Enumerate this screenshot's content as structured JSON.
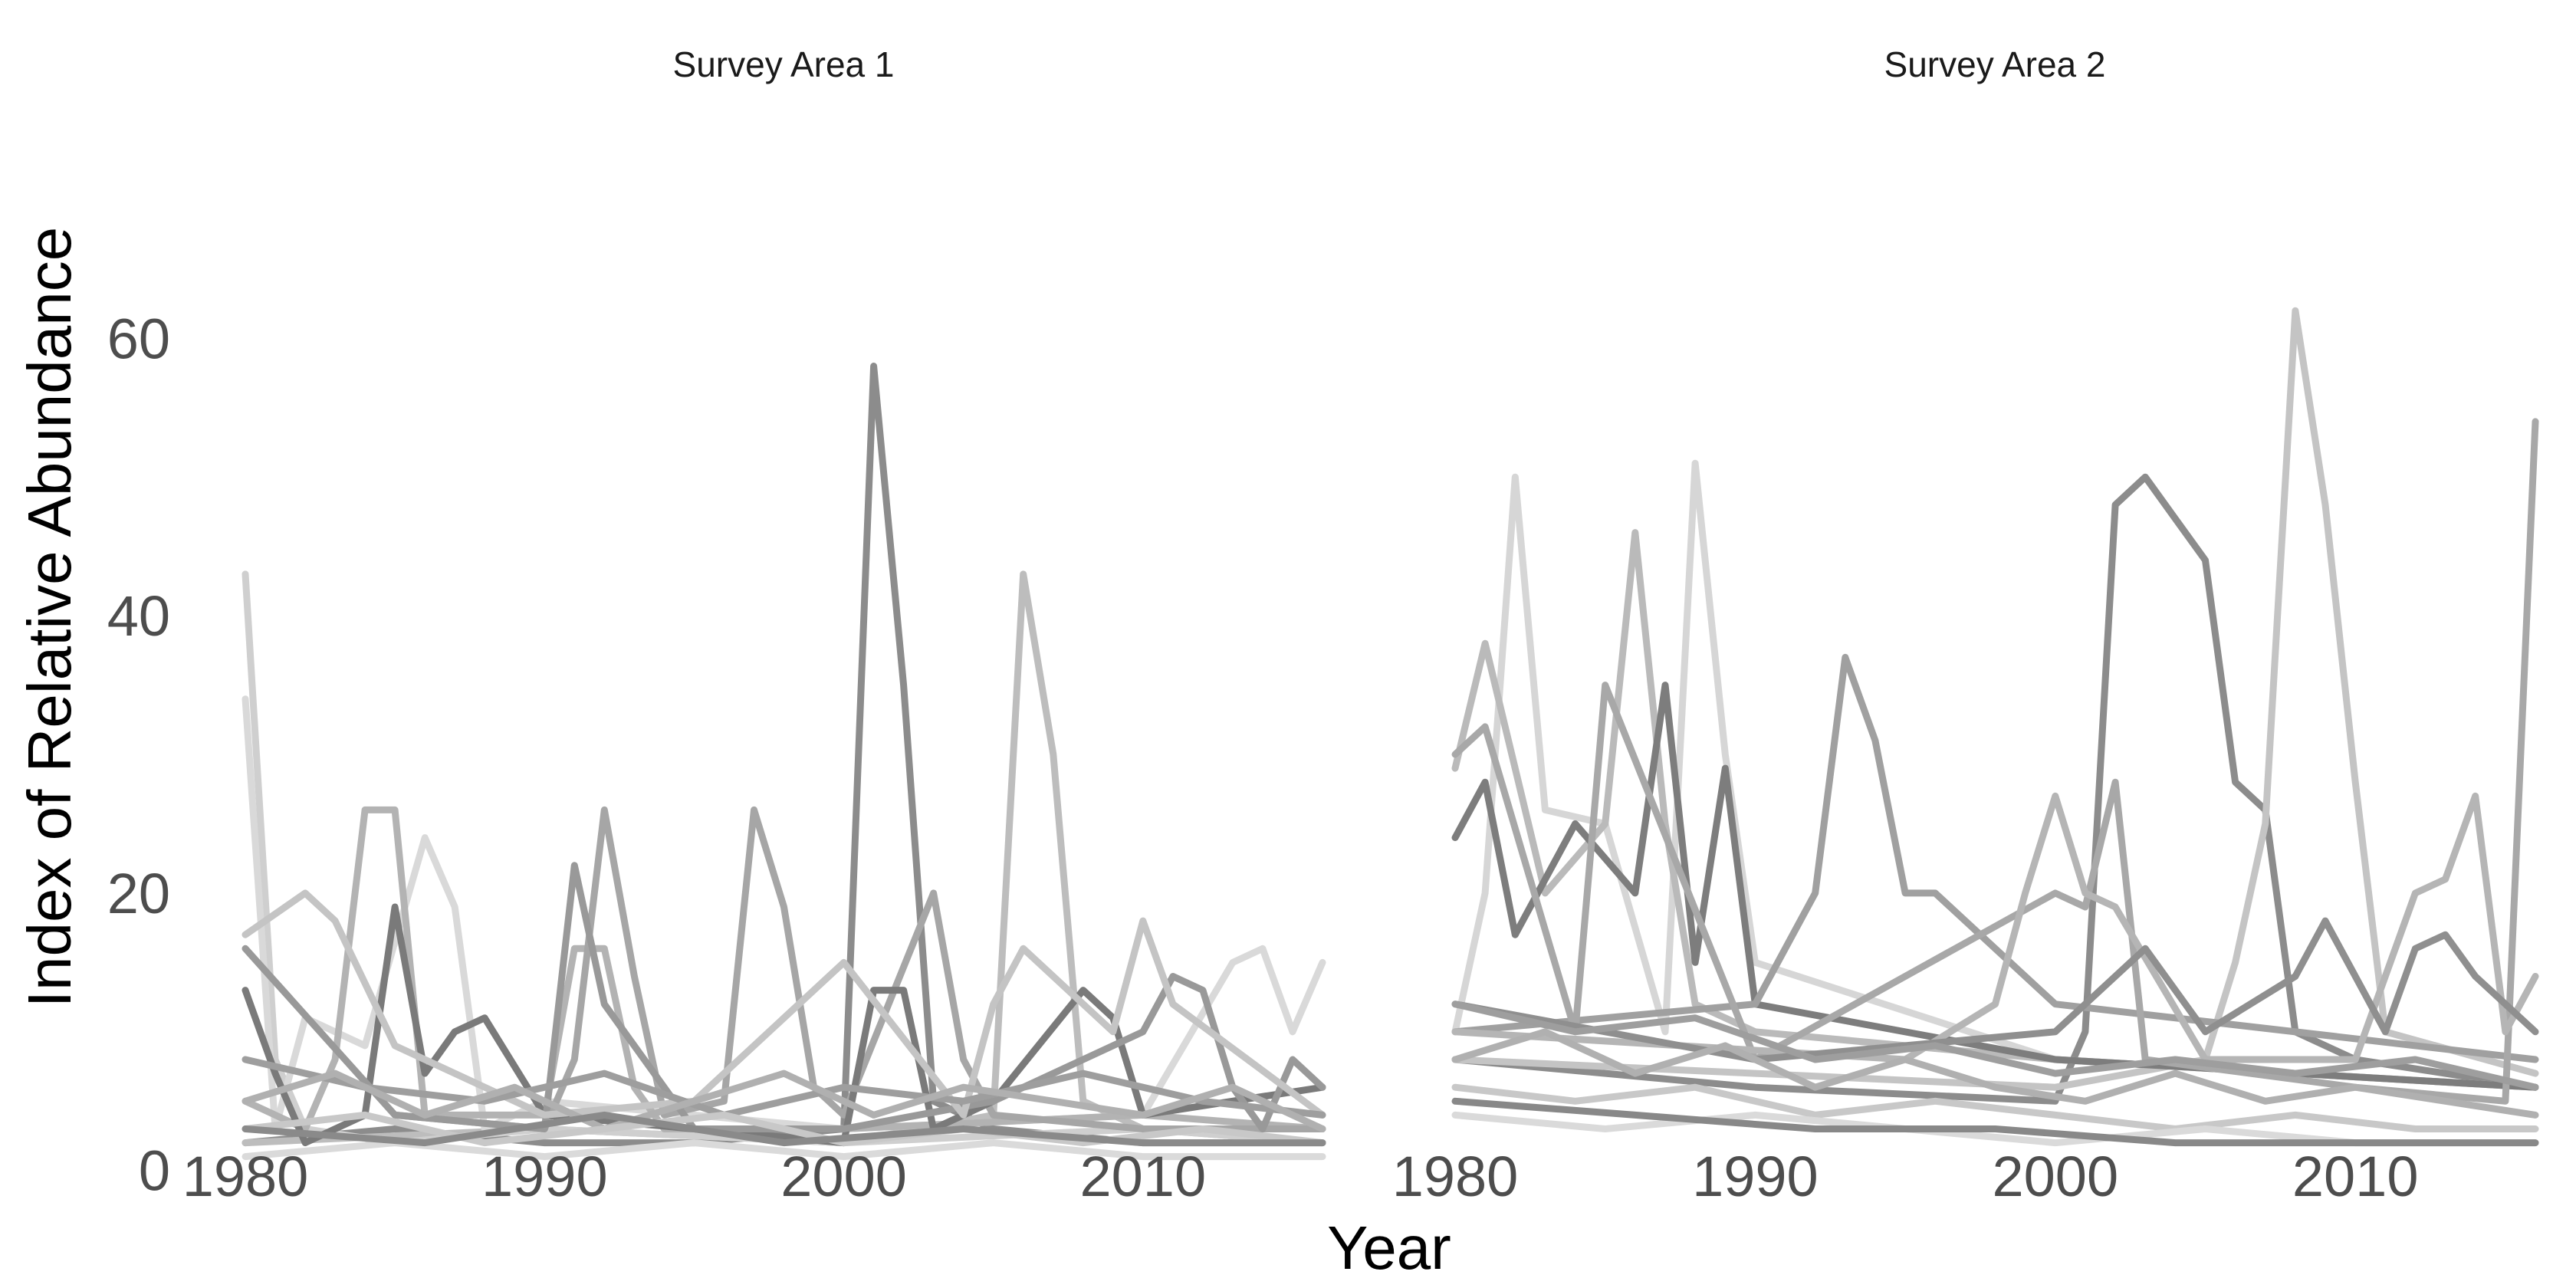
{
  "chart_data": {
    "type": "line",
    "xlabel": "Year",
    "ylabel": "Index of Relative Abundance",
    "xlim": [
      1980,
      2016
    ],
    "ylim": [
      -3,
      75
    ],
    "x_ticks": [
      1980,
      1990,
      2000,
      2010
    ],
    "y_ticks": [
      0,
      20,
      40,
      60
    ],
    "grid": false,
    "legend": "none",
    "panels": [
      {
        "title": "Survey Area 1",
        "series": [
          {
            "color": "#8c8c8c",
            "x": [
              1980,
              1985,
              1990,
              1995,
              2000,
              2001,
              2002,
              2003,
              2005,
              2010,
              2016
            ],
            "y": [
              2,
              3,
              2,
              2,
              3,
              58,
              35,
              5,
              3,
              2,
              2
            ]
          },
          {
            "color": "#bdbdbd",
            "x": [
              1980,
              1990,
              2000,
              2005,
              2006,
              2007,
              2008,
              2010,
              2016
            ],
            "y": [
              2,
              3,
              2,
              4,
              43,
              30,
              5,
              3,
              2
            ]
          },
          {
            "color": "#cfcfcf",
            "x": [
              1980,
              1981,
              1982,
              1985,
              1990,
              2000,
              2010,
              2016
            ],
            "y": [
              43,
              8,
              3,
              2,
              3,
              2,
              3,
              2
            ]
          },
          {
            "color": "#d9d9d9",
            "x": [
              1980,
              1981,
              1982,
              1984,
              1986,
              1987,
              1988,
              1990,
              2000,
              2010,
              2013,
              2014,
              2015,
              2016
            ],
            "y": [
              34,
              3,
              11,
              9,
              24,
              19,
              3,
              5,
              3,
              4,
              15,
              16,
              10,
              15
            ]
          },
          {
            "color": "#b3b3b3",
            "x": [
              1980,
              1982,
              1983,
              1984,
              1985,
              1986,
              1990,
              1991,
              1992,
              1993,
              1994,
              2000,
              2010,
              2016
            ],
            "y": [
              5,
              3,
              8,
              26,
              26,
              4,
              4,
              16,
              16,
              6,
              3,
              3,
              4,
              3
            ]
          },
          {
            "color": "#a6a6a6",
            "x": [
              1985,
              1990,
              1991,
              1992,
              1993,
              1994,
              1996,
              1997,
              1998,
              1999,
              2000,
              2003,
              2004,
              2005,
              2010,
              2016
            ],
            "y": [
              4,
              3,
              8,
              26,
              14,
              4,
              5,
              26,
              19,
              6,
              4,
              20,
              8,
              4,
              3,
              3
            ]
          },
          {
            "color": "#7a7a7a",
            "x": [
              1980,
              1981,
              1982,
              1984,
              1985,
              1986,
              1987,
              1988,
              1990,
              1995,
              2000,
              2001,
              2002,
              2003,
              2005,
              2008,
              2009,
              2010,
              2016
            ],
            "y": [
              13,
              7,
              2,
              4,
              19,
              7,
              10,
              11,
              4,
              3,
              2,
              13,
              13,
              3,
              5,
              13,
              11,
              4,
              6
            ]
          },
          {
            "color": "#999999",
            "x": [
              1980,
              1985,
              1990,
              1991,
              1992,
              1995,
              2000,
              2005,
              2010,
              2011,
              2012,
              2013,
              2014,
              2015,
              2016
            ],
            "y": [
              16,
              4,
              3,
              22,
              12,
              3,
              3,
              5,
              10,
              14,
              13,
              6,
              3,
              8,
              6
            ]
          },
          {
            "color": "#c4c4c4",
            "x": [
              1980,
              1982,
              1983,
              1985,
              1990,
              1995,
              2000,
              2004,
              2005,
              2006,
              2009,
              2010,
              2011,
              2016
            ],
            "y": [
              17,
              20,
              18,
              9,
              4,
              5,
              15,
              4,
              12,
              16,
              10,
              18,
              12,
              4
            ]
          },
          {
            "color": "#9e9e9e",
            "x": [
              1980,
              1984,
              1988,
              1992,
              1996,
              2000,
              2004,
              2008,
              2012,
              2016
            ],
            "y": [
              8,
              6,
              5,
              7,
              4,
              6,
              5,
              7,
              5,
              4
            ]
          },
          {
            "color": "#b0b0b0",
            "x": [
              1980,
              1983,
              1986,
              1989,
              1992,
              1995,
              1998,
              2001,
              2004,
              2007,
              2010,
              2013,
              2016
            ],
            "y": [
              5,
              7,
              4,
              6,
              3,
              5,
              7,
              4,
              6,
              5,
              4,
              6,
              3
            ]
          },
          {
            "color": "#c8c8c8",
            "x": [
              1980,
              1984,
              1988,
              1992,
              1996,
              2000,
              2004,
              2008,
              2012,
              2016
            ],
            "y": [
              3,
              4,
              2,
              3,
              4,
              2,
              3,
              2,
              3,
              2
            ]
          },
          {
            "color": "#dadada",
            "x": [
              1980,
              1985,
              1990,
              1995,
              2000,
              2005,
              2010,
              2016
            ],
            "y": [
              1,
              2,
              1,
              2,
              1,
              2,
              1,
              1
            ]
          },
          {
            "color": "#8a8a8a",
            "x": [
              1980,
              1986,
              1992,
              1998,
              2004,
              2010,
              2016
            ],
            "y": [
              3,
              2,
              4,
              2,
              3,
              2,
              2
            ]
          }
        ]
      },
      {
        "title": "Survey Area 2",
        "series": [
          {
            "color": "#8c8c8c",
            "x": [
              1980,
              1990,
              2000,
              2001,
              2002,
              2003,
              2004,
              2005,
              2006,
              2007,
              2008,
              2010,
              2016
            ],
            "y": [
              8,
              6,
              5,
              10,
              48,
              50,
              47,
              44,
              28,
              26,
              10,
              8,
              6
            ]
          },
          {
            "color": "#c4c4c4",
            "x": [
              1980,
              1990,
              2000,
              2005,
              2006,
              2007,
              2008,
              2009,
              2010,
              2011,
              2016
            ],
            "y": [
              8,
              7,
              6,
              8,
              15,
              25,
              62,
              48,
              28,
              10,
              7
            ]
          },
          {
            "color": "#d6d6d6",
            "x": [
              1980,
              1981,
              1982,
              1983,
              1985,
              1987,
              1988,
              1989,
              1990,
              2000,
              2016
            ],
            "y": [
              10,
              20,
              50,
              26,
              25,
              10,
              51,
              30,
              15,
              8,
              6
            ]
          },
          {
            "color": "#bababa",
            "x": [
              1980,
              1981,
              1983,
              1985,
              1986,
              1987,
              1988,
              1990,
              2000,
              2016
            ],
            "y": [
              29,
              38,
              20,
              25,
              46,
              25,
              12,
              10,
              8,
              6
            ]
          },
          {
            "color": "#7d7d7d",
            "x": [
              1980,
              1981,
              1982,
              1984,
              1986,
              1987,
              1988,
              1989,
              1990,
              2000,
              2016
            ],
            "y": [
              24,
              28,
              17,
              25,
              20,
              35,
              15,
              29,
              12,
              8,
              6
            ]
          },
          {
            "color": "#a0a0a0",
            "x": [
              1980,
              1990,
              1992,
              1993,
              1994,
              1995,
              1996,
              2000,
              2016
            ],
            "y": [
              10,
              12,
              20,
              37,
              31,
              20,
              20,
              12,
              8
            ]
          },
          {
            "color": "#a8a8a8",
            "x": [
              1980,
              1981,
              1984,
              1985,
              1990,
              2000,
              2001,
              2002,
              2003,
              2010,
              2015,
              2016
            ],
            "y": [
              30,
              32,
              10,
              35,
              8,
              20,
              19,
              28,
              8,
              6,
              5,
              54
            ]
          },
          {
            "color": "#b5b5b5",
            "x": [
              1980,
              1995,
              1998,
              1999,
              2000,
              2001,
              2002,
              2005,
              2010,
              2012,
              2013,
              2014,
              2015,
              2016
            ],
            "y": [
              10,
              8,
              12,
              20,
              27,
              20,
              19,
              8,
              8,
              20,
              21,
              27,
              10,
              14
            ]
          },
          {
            "color": "#8f8f8f",
            "x": [
              1980,
              1990,
              2000,
              2003,
              2005,
              2008,
              2009,
              2010,
              2011,
              2012,
              2013,
              2014,
              2016
            ],
            "y": [
              12,
              8,
              10,
              16,
              10,
              14,
              18,
              14,
              10,
              16,
              17,
              14,
              10
            ]
          },
          {
            "color": "#9e9e9e",
            "x": [
              1980,
              1984,
              1988,
              1992,
              1996,
              2000,
              2004,
              2008,
              2012,
              2016
            ],
            "y": [
              12,
              10,
              11,
              8,
              9,
              7,
              8,
              7,
              8,
              6
            ]
          },
          {
            "color": "#b0b0b0",
            "x": [
              1980,
              1983,
              1986,
              1989,
              1992,
              1995,
              1998,
              2001,
              2004,
              2007,
              2010,
              2013,
              2016
            ],
            "y": [
              8,
              10,
              7,
              9,
              6,
              8,
              6,
              5,
              7,
              5,
              6,
              5,
              4
            ]
          },
          {
            "color": "#c8c8c8",
            "x": [
              1980,
              1984,
              1988,
              1992,
              1996,
              2000,
              2004,
              2008,
              2012,
              2016
            ],
            "y": [
              6,
              5,
              6,
              4,
              5,
              4,
              3,
              4,
              3,
              3
            ]
          },
          {
            "color": "#dadada",
            "x": [
              1980,
              1985,
              1990,
              1995,
              2000,
              2005,
              2010,
              2016
            ],
            "y": [
              4,
              3,
              4,
              3,
              2,
              3,
              2,
              2
            ]
          },
          {
            "color": "#888888",
            "x": [
              1980,
              1986,
              1992,
              1998,
              2004,
              2010,
              2016
            ],
            "y": [
              5,
              4,
              3,
              3,
              2,
              2,
              2
            ]
          }
        ]
      }
    ]
  }
}
